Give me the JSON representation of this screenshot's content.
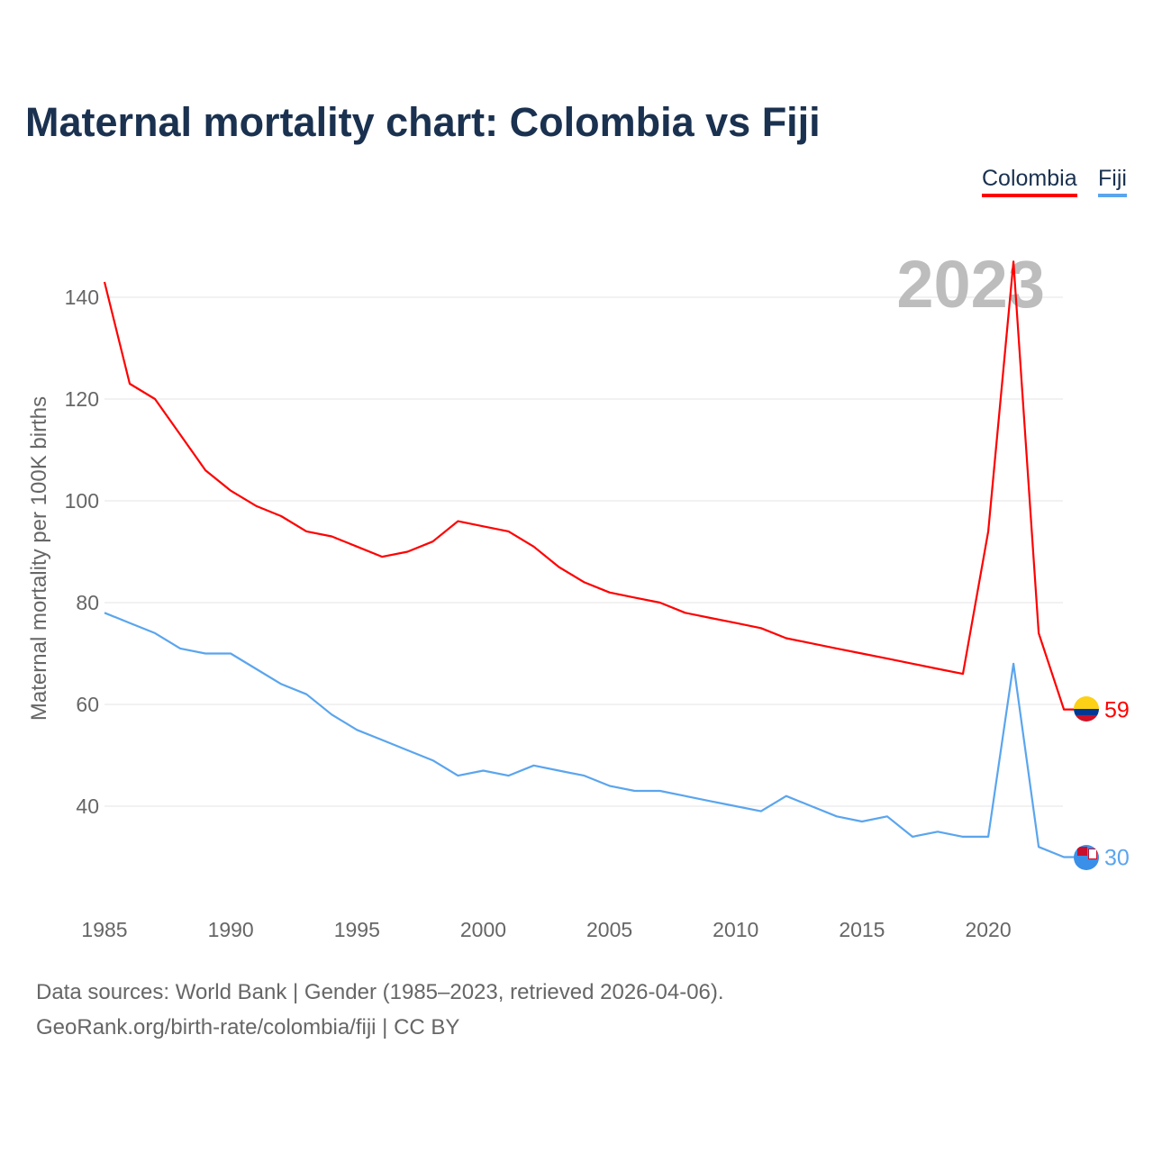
{
  "chart_data": {
    "type": "line",
    "title": "Maternal mortality chart: Colombia vs Fiji",
    "ylabel": "Maternal mortality per 100K births",
    "xlabel": "",
    "watermark_year": "2023",
    "ylim": [
      22,
      150
    ],
    "xlim": [
      1985,
      2023
    ],
    "yticks": [
      40,
      60,
      80,
      100,
      120,
      140
    ],
    "xticks": [
      1985,
      1990,
      1995,
      2000,
      2005,
      2010,
      2015,
      2020
    ],
    "grid": true,
    "legend_position": "top-right",
    "x": [
      1985,
      1986,
      1987,
      1988,
      1989,
      1990,
      1991,
      1992,
      1993,
      1994,
      1995,
      1996,
      1997,
      1998,
      1999,
      2000,
      2001,
      2002,
      2003,
      2004,
      2005,
      2006,
      2007,
      2008,
      2009,
      2010,
      2011,
      2012,
      2013,
      2014,
      2015,
      2016,
      2017,
      2018,
      2019,
      2020,
      2021,
      2022,
      2023
    ],
    "series": [
      {
        "name": "Colombia",
        "color": "#ff0000",
        "end_label": "59",
        "values": [
          143,
          123,
          120,
          113,
          106,
          102,
          99,
          97,
          94,
          93,
          91,
          89,
          90,
          92,
          96,
          95,
          94,
          91,
          87,
          84,
          82,
          81,
          80,
          78,
          77,
          76,
          75,
          73,
          72,
          71,
          70,
          69,
          68,
          67,
          66,
          94,
          147,
          74,
          59
        ]
      },
      {
        "name": "Fiji",
        "color": "#5aa5ee",
        "end_label": "30",
        "values": [
          78,
          76,
          74,
          71,
          70,
          70,
          67,
          64,
          62,
          58,
          55,
          53,
          51,
          49,
          46,
          47,
          46,
          48,
          47,
          46,
          44,
          43,
          43,
          42,
          41,
          40,
          39,
          42,
          40,
          38,
          37,
          38,
          34,
          35,
          34,
          34,
          68,
          32,
          30
        ]
      }
    ]
  },
  "footer": {
    "source_line": "Data sources: World Bank | Gender (1985–2023, retrieved 2026-04-06).",
    "attribution": "GeoRank.org/birth-rate/colombia/fiji | CC BY"
  }
}
